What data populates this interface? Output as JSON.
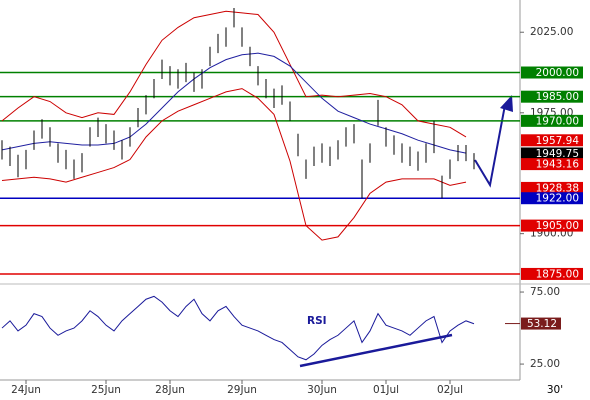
{
  "chart_data": {
    "type": "ohlc",
    "ylim": [
      1870,
      2045
    ],
    "yticks": [
      {
        "value": 2025,
        "label": "2025.00"
      },
      {
        "value": 1975,
        "label": "1975.00"
      },
      {
        "value": 1900,
        "label": "1900.00"
      }
    ],
    "categories": [
      null,
      null,
      null,
      "24Jun",
      null,
      null,
      null,
      null,
      null,
      null,
      null,
      null,
      null,
      "25Jun",
      null,
      null,
      null,
      null,
      null,
      null,
      null,
      "28Jun",
      null,
      null,
      null,
      null,
      null,
      null,
      null,
      null,
      "29Jun",
      null,
      null,
      null,
      null,
      null,
      null,
      null,
      null,
      null,
      "30Jun",
      null,
      null,
      null,
      null,
      null,
      null,
      null,
      "01Jul",
      null,
      null,
      null,
      null,
      null,
      null,
      null,
      "02Jul",
      null,
      null,
      null
    ],
    "high": [
      1958,
      1954,
      1949,
      1952,
      1964,
      1971,
      1966,
      1956,
      1952,
      1946,
      1950,
      1966,
      1972,
      1968,
      1964,
      1958,
      1966,
      1978,
      1986,
      1996,
      2008,
      2004,
      2002,
      2006,
      2000,
      2002,
      2016,
      2024,
      2028,
      2040,
      2028,
      2016,
      2004,
      1996,
      1990,
      1992,
      1982,
      1962,
      1946,
      1954,
      1956,
      1954,
      1958,
      1966,
      1968,
      1946,
      1956,
      1983,
      1966,
      1961,
      1956,
      1954,
      1951,
      1956,
      1970,
      1936,
      1946,
      1955,
      1955,
      1950
    ],
    "low": [
      1946,
      1942,
      1935,
      1940,
      1952,
      1959,
      1954,
      1944,
      1940,
      1934,
      1938,
      1954,
      1960,
      1956,
      1952,
      1946,
      1954,
      1966,
      1974,
      1984,
      1996,
      1992,
      1990,
      1994,
      1988,
      1990,
      2004,
      2012,
      2016,
      2028,
      2016,
      2004,
      1992,
      1984,
      1978,
      1980,
      1970,
      1948,
      1934,
      1942,
      1944,
      1942,
      1946,
      1954,
      1956,
      1922,
      1944,
      1967,
      1954,
      1949,
      1944,
      1942,
      1939,
      1944,
      1950,
      1922,
      1934,
      1945,
      1945,
      1940
    ],
    "bb_upper": [
      1970,
      1978,
      1985,
      1982,
      1975,
      1972,
      1975,
      1974,
      1988,
      2005,
      2020,
      2028,
      2034,
      2036,
      2038,
      2037,
      2036,
      2025,
      2005,
      1985,
      1986,
      1985,
      1986,
      1987,
      1985,
      1980,
      1970,
      1968,
      1966,
      1960
    ],
    "bb_lower": [
      1933,
      1934,
      1935,
      1934,
      1932,
      1935,
      1938,
      1941,
      1946,
      1960,
      1970,
      1976,
      1980,
      1984,
      1988,
      1990,
      1984,
      1974,
      1945,
      1905,
      1896,
      1898,
      1910,
      1925,
      1932,
      1934,
      1934,
      1934,
      1930,
      1932
    ],
    "ma": [
      1952,
      1954,
      1956,
      1957,
      1956,
      1955,
      1955,
      1956,
      1960,
      1968,
      1978,
      1988,
      1996,
      2003,
      2008,
      2011,
      2012,
      2010,
      2004,
      1994,
      1984,
      1976,
      1972,
      1968,
      1965,
      1962,
      1958,
      1955,
      1952,
      1950
    ],
    "band_color": "#cc0000",
    "ma_color": "#2020a0",
    "bar_color": "#000000",
    "levels": [
      {
        "value": 2000,
        "label": "2000.00",
        "color": "#008000",
        "line": true
      },
      {
        "value": 1985,
        "label": "1985.00",
        "color": "#008000",
        "line": true
      },
      {
        "value": 1970,
        "label": "1970.00",
        "color": "#008000",
        "line": true
      },
      {
        "value": 1957.94,
        "label": "1957.94",
        "color": "#e00000",
        "line": false
      },
      {
        "value": 1949.75,
        "label": "1949.75",
        "color": "#000000",
        "line": false
      },
      {
        "value": 1943.16,
        "label": "1943.16",
        "color": "#e00000",
        "line": false
      },
      {
        "value": 1928.38,
        "label": "1928.38",
        "color": "#e00000",
        "line": false
      },
      {
        "value": 1922,
        "label": "1922.00",
        "color": "#0000c0",
        "line": true
      },
      {
        "value": 1905,
        "label": "1905.00",
        "color": "#e00000",
        "line": true
      },
      {
        "value": 1875,
        "label": "1875.00",
        "color": "#e00000",
        "line": true
      }
    ],
    "rsi": {
      "label": "RSI",
      "ylim": [
        19.5,
        78.5
      ],
      "yticks": [
        {
          "value": 75,
          "label": "75.00"
        },
        {
          "value": 25,
          "label": "25.00"
        }
      ],
      "color": "#1a1a9a",
      "values": [
        50,
        55,
        48,
        52,
        60,
        58,
        50,
        45,
        48,
        50,
        55,
        62,
        58,
        52,
        48,
        55,
        60,
        65,
        70,
        72,
        68,
        62,
        58,
        65,
        70,
        60,
        55,
        62,
        65,
        58,
        52,
        50,
        48,
        45,
        42,
        40,
        35,
        30,
        28,
        32,
        38,
        42,
        45,
        50,
        55,
        40,
        48,
        60,
        52,
        50,
        48,
        45,
        50,
        55,
        58,
        40,
        48,
        52,
        55,
        53
      ],
      "last": {
        "value": 53.12,
        "label": "53.12",
        "color": "#7a1c1c"
      }
    },
    "timeframe": "30'"
  }
}
